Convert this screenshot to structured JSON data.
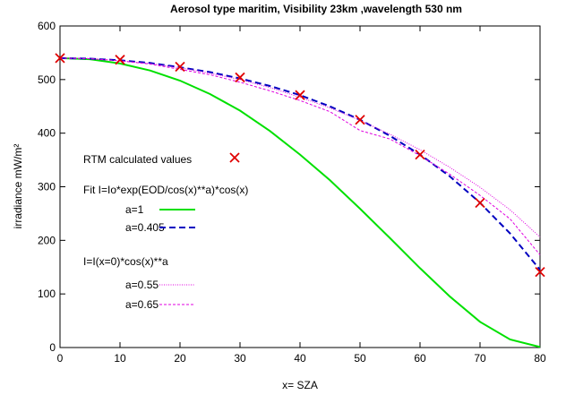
{
  "chart_data": {
    "type": "line",
    "title": "Aerosol type maritim, Visibility 23km ,wavelength 530 nm",
    "xlabel": "x= SZA",
    "ylabel": "irradiance mW/m²",
    "xlim": [
      0,
      80
    ],
    "ylim": [
      0,
      600
    ],
    "x_ticks": [
      0,
      10,
      20,
      30,
      40,
      50,
      60,
      70,
      80
    ],
    "y_ticks": [
      0,
      100,
      200,
      300,
      400,
      500,
      600
    ],
    "grid": false,
    "legend": {
      "placement": "center-left",
      "group1_title": "Fit I=Io*exp(EOD/cos(x)**a)*cos(x)",
      "group2_title": "I=I(x=0)*cos(x)**a"
    },
    "colors": {
      "rtm": "#e00000",
      "fit_a1": "#00e000",
      "fit_a0405": "#0000c0",
      "cos_055": "#e000e0",
      "cos_065": "#e000e0"
    },
    "series": [
      {
        "name": "RTM calculated values",
        "key": "rtm",
        "style": "points",
        "x": [
          0,
          10,
          20,
          30,
          40,
          50,
          60,
          70,
          80
        ],
        "y": [
          540,
          537,
          524,
          504,
          471,
          425,
          360,
          270,
          141
        ]
      },
      {
        "name": "a=1",
        "key": "fit_a1",
        "group": 1,
        "style": "solid",
        "x": [
          0,
          5,
          10,
          15,
          20,
          25,
          30,
          35,
          40,
          45,
          50,
          55,
          60,
          65,
          70,
          75,
          80
        ],
        "y": [
          540,
          538,
          530,
          517,
          498,
          473,
          442,
          404,
          360,
          312,
          259,
          204,
          148,
          95,
          48,
          15,
          1
        ]
      },
      {
        "name": "a=0.405",
        "key": "fit_a0405",
        "group": 1,
        "style": "dashed",
        "x": [
          0,
          5,
          10,
          15,
          20,
          25,
          30,
          35,
          40,
          45,
          50,
          55,
          60,
          65,
          70,
          75,
          80
        ],
        "y": [
          540,
          539,
          536,
          531,
          523,
          514,
          502,
          488,
          471,
          450,
          425,
          395,
          360,
          319,
          270,
          213,
          145
        ]
      },
      {
        "name": "a=0.55",
        "key": "cos_055",
        "group": 2,
        "style": "dotted",
        "x": [
          0,
          5,
          10,
          15,
          20,
          25,
          30,
          35,
          40,
          45,
          50,
          55,
          60,
          65,
          70,
          75,
          80
        ],
        "y": [
          540,
          539,
          535,
          530,
          522,
          512,
          500,
          485,
          467,
          447,
          424,
          398,
          369,
          336,
          299,
          257,
          206
        ]
      },
      {
        "name": "a=0.65",
        "key": "cos_065",
        "group": 2,
        "style": "shortdash",
        "x": [
          0,
          5,
          10,
          15,
          20,
          25,
          30,
          35,
          40,
          45,
          50,
          55,
          60,
          65,
          70,
          75,
          80
        ],
        "y": [
          540,
          539,
          535,
          529,
          519,
          509,
          495,
          479,
          461,
          440,
          405,
          389,
          358,
          323,
          284,
          240,
          173
        ]
      }
    ]
  }
}
